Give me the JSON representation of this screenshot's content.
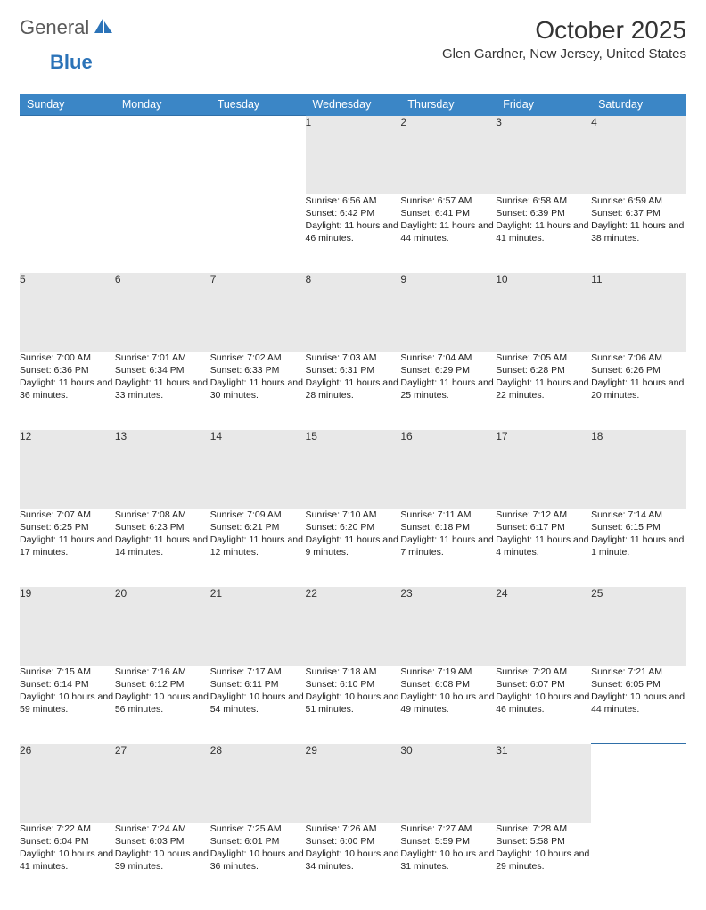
{
  "brand": {
    "part1": "General",
    "part2": "Blue"
  },
  "title": "October 2025",
  "location": "Glen Gardner, New Jersey, United States",
  "colors": {
    "header_bg": "#3b86c6",
    "header_text": "#ffffff",
    "daynum_bg": "#e8e8e8",
    "rule": "#2f6fa8",
    "logo_blue": "#2b73b8"
  },
  "day_labels": [
    "Sunday",
    "Monday",
    "Tuesday",
    "Wednesday",
    "Thursday",
    "Friday",
    "Saturday"
  ],
  "weeks": [
    [
      null,
      null,
      null,
      {
        "n": "1",
        "sr": "6:56 AM",
        "ss": "6:42 PM",
        "dl": "11 hours and 46 minutes."
      },
      {
        "n": "2",
        "sr": "6:57 AM",
        "ss": "6:41 PM",
        "dl": "11 hours and 44 minutes."
      },
      {
        "n": "3",
        "sr": "6:58 AM",
        "ss": "6:39 PM",
        "dl": "11 hours and 41 minutes."
      },
      {
        "n": "4",
        "sr": "6:59 AM",
        "ss": "6:37 PM",
        "dl": "11 hours and 38 minutes."
      }
    ],
    [
      {
        "n": "5",
        "sr": "7:00 AM",
        "ss": "6:36 PM",
        "dl": "11 hours and 36 minutes."
      },
      {
        "n": "6",
        "sr": "7:01 AM",
        "ss": "6:34 PM",
        "dl": "11 hours and 33 minutes."
      },
      {
        "n": "7",
        "sr": "7:02 AM",
        "ss": "6:33 PM",
        "dl": "11 hours and 30 minutes."
      },
      {
        "n": "8",
        "sr": "7:03 AM",
        "ss": "6:31 PM",
        "dl": "11 hours and 28 minutes."
      },
      {
        "n": "9",
        "sr": "7:04 AM",
        "ss": "6:29 PM",
        "dl": "11 hours and 25 minutes."
      },
      {
        "n": "10",
        "sr": "7:05 AM",
        "ss": "6:28 PM",
        "dl": "11 hours and 22 minutes."
      },
      {
        "n": "11",
        "sr": "7:06 AM",
        "ss": "6:26 PM",
        "dl": "11 hours and 20 minutes."
      }
    ],
    [
      {
        "n": "12",
        "sr": "7:07 AM",
        "ss": "6:25 PM",
        "dl": "11 hours and 17 minutes."
      },
      {
        "n": "13",
        "sr": "7:08 AM",
        "ss": "6:23 PM",
        "dl": "11 hours and 14 minutes."
      },
      {
        "n": "14",
        "sr": "7:09 AM",
        "ss": "6:21 PM",
        "dl": "11 hours and 12 minutes."
      },
      {
        "n": "15",
        "sr": "7:10 AM",
        "ss": "6:20 PM",
        "dl": "11 hours and 9 minutes."
      },
      {
        "n": "16",
        "sr": "7:11 AM",
        "ss": "6:18 PM",
        "dl": "11 hours and 7 minutes."
      },
      {
        "n": "17",
        "sr": "7:12 AM",
        "ss": "6:17 PM",
        "dl": "11 hours and 4 minutes."
      },
      {
        "n": "18",
        "sr": "7:14 AM",
        "ss": "6:15 PM",
        "dl": "11 hours and 1 minute."
      }
    ],
    [
      {
        "n": "19",
        "sr": "7:15 AM",
        "ss": "6:14 PM",
        "dl": "10 hours and 59 minutes."
      },
      {
        "n": "20",
        "sr": "7:16 AM",
        "ss": "6:12 PM",
        "dl": "10 hours and 56 minutes."
      },
      {
        "n": "21",
        "sr": "7:17 AM",
        "ss": "6:11 PM",
        "dl": "10 hours and 54 minutes."
      },
      {
        "n": "22",
        "sr": "7:18 AM",
        "ss": "6:10 PM",
        "dl": "10 hours and 51 minutes."
      },
      {
        "n": "23",
        "sr": "7:19 AM",
        "ss": "6:08 PM",
        "dl": "10 hours and 49 minutes."
      },
      {
        "n": "24",
        "sr": "7:20 AM",
        "ss": "6:07 PM",
        "dl": "10 hours and 46 minutes."
      },
      {
        "n": "25",
        "sr": "7:21 AM",
        "ss": "6:05 PM",
        "dl": "10 hours and 44 minutes."
      }
    ],
    [
      {
        "n": "26",
        "sr": "7:22 AM",
        "ss": "6:04 PM",
        "dl": "10 hours and 41 minutes."
      },
      {
        "n": "27",
        "sr": "7:24 AM",
        "ss": "6:03 PM",
        "dl": "10 hours and 39 minutes."
      },
      {
        "n": "28",
        "sr": "7:25 AM",
        "ss": "6:01 PM",
        "dl": "10 hours and 36 minutes."
      },
      {
        "n": "29",
        "sr": "7:26 AM",
        "ss": "6:00 PM",
        "dl": "10 hours and 34 minutes."
      },
      {
        "n": "30",
        "sr": "7:27 AM",
        "ss": "5:59 PM",
        "dl": "10 hours and 31 minutes."
      },
      {
        "n": "31",
        "sr": "7:28 AM",
        "ss": "5:58 PM",
        "dl": "10 hours and 29 minutes."
      },
      null
    ]
  ],
  "labels": {
    "sunrise": "Sunrise:",
    "sunset": "Sunset:",
    "daylight": "Daylight:"
  }
}
